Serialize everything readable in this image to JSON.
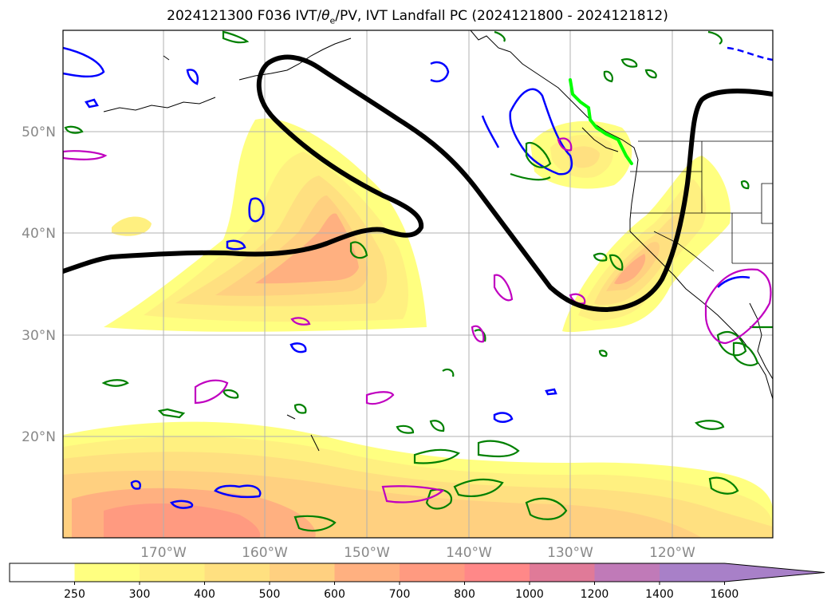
{
  "title": "2024121300 F036 IVT/θₑ/PV, IVT Landfall PC (2024121800 - 2024121812)",
  "title_prefix": "2024121300 F036 IVT/",
  "title_theta": "θ",
  "title_sub": "e",
  "title_suffix": "/PV, IVT Landfall PC (2024121800 - 2024121812)",
  "map": {
    "lon_range": [
      -180,
      -110
    ],
    "lat_range": [
      10,
      60
    ],
    "lat_labels": [
      "50°N",
      "40°N",
      "30°N",
      "20°N"
    ],
    "lon_labels": [
      "170°W",
      "160°W",
      "150°W",
      "140°W",
      "130°W",
      "120°W"
    ],
    "grid": true,
    "contour_colors": {
      "theta_e": "#0000ff",
      "pv_green": "#008000",
      "pv_magenta": "#c000c0",
      "landfall_line": "#00ff00",
      "ivt_outline": "#000000"
    }
  },
  "colorbar": {
    "ticks": [
      "250",
      "300",
      "400",
      "500",
      "600",
      "700",
      "800",
      "1000",
      "1200",
      "1400",
      "1600"
    ],
    "colors": [
      "#ffffff",
      "#ffff80",
      "#fff080",
      "#ffe080",
      "#ffd080",
      "#ffb080",
      "#ff9a80",
      "#ff8888",
      "#e07a98",
      "#c07ab8",
      "#a880c8"
    ],
    "extend": "max"
  }
}
